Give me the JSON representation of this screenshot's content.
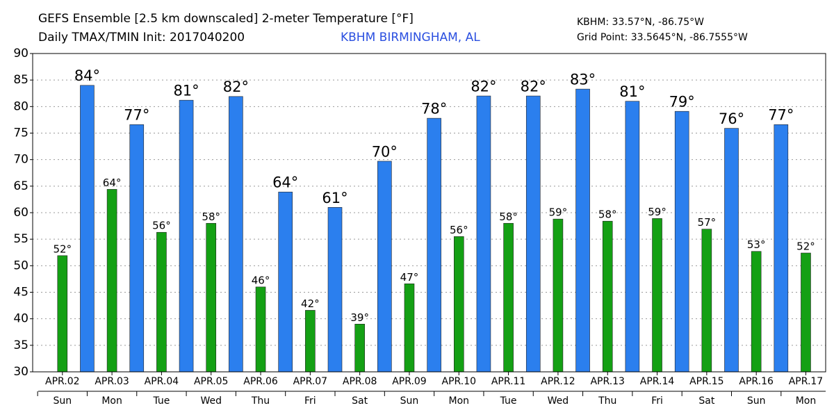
{
  "chart_data": {
    "type": "bar",
    "title": "GEFS Ensemble [2.5 km downscaled] 2-meter Temperature [°F]",
    "subtitle": "Daily TMAX/TMIN Init: 2017040200",
    "location": "KBHM BIRMINGHAM, AL",
    "station": "KBHM: 33.57°N, -86.75°W",
    "grid_point": "Grid Point: 33.5645°N, -86.7555°W",
    "categories": [
      "APR.02",
      "APR.03",
      "APR.04",
      "APR.05",
      "APR.06",
      "APR.07",
      "APR.08",
      "APR.09",
      "APR.10",
      "APR.11",
      "APR.12",
      "APR.13",
      "APR.14",
      "APR.15",
      "APR.16",
      "APR.17"
    ],
    "weekdays": [
      "Sun",
      "Mon",
      "Tue",
      "Wed",
      "Thu",
      "Fri",
      "Sat",
      "Sun",
      "Mon",
      "Tue",
      "Wed",
      "Thu",
      "Fri",
      "Sat",
      "Sun",
      "Mon"
    ],
    "series": [
      {
        "color": "#2b7fee",
        "offset": 0.5,
        "values": [
          84.0,
          76.6,
          81.2,
          81.9,
          63.9,
          61.0,
          69.7,
          77.8,
          82.0,
          82.0,
          83.3,
          81.0,
          79.1,
          75.9,
          76.6,
          null
        ],
        "value_labels": [
          "84°",
          "77°",
          "81°",
          "82°",
          "64°",
          "61°",
          "70°",
          "78°",
          "82°",
          "82°",
          "83°",
          "81°",
          "79°",
          "76°",
          "77°",
          null
        ]
      },
      {
        "color": "#14a014",
        "offset": 0,
        "values": [
          51.9,
          64.4,
          56.3,
          58.0,
          46.0,
          41.6,
          39.0,
          46.6,
          55.5,
          58.0,
          58.8,
          58.4,
          58.9,
          56.9,
          52.7,
          52.4
        ],
        "value_labels": [
          "52°",
          "64°",
          "56°",
          "58°",
          "46°",
          "42°",
          "39°",
          "47°",
          "56°",
          "58°",
          "59°",
          "58°",
          "59°",
          "57°",
          "53°",
          "52°"
        ]
      }
    ],
    "ylim": [
      30,
      90
    ],
    "yticks": [
      30,
      35,
      40,
      45,
      50,
      55,
      60,
      65,
      70,
      75,
      80,
      85,
      90
    ],
    "grid": true
  }
}
